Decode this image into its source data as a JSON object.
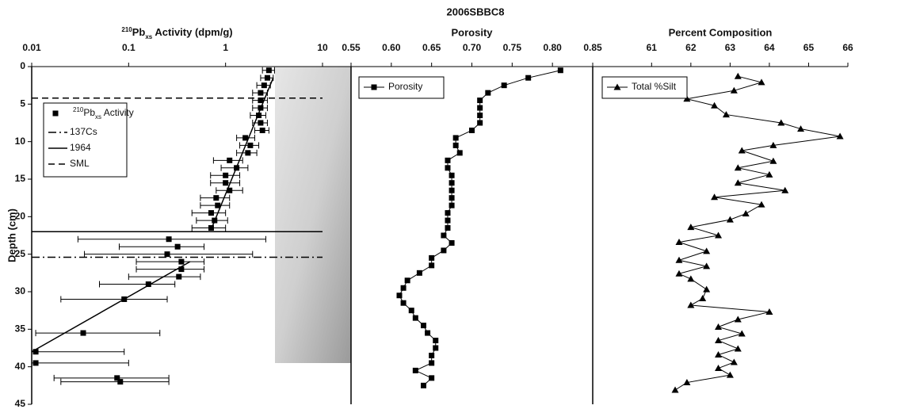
{
  "title": "2006SBBC8",
  "depth_axis": {
    "label": "Depth (cm)",
    "lim": [
      0,
      45
    ],
    "ticks": [
      0,
      5,
      10,
      15,
      20,
      25,
      30,
      35,
      40,
      45
    ]
  },
  "chart_data": [
    {
      "type": "scatter",
      "log_x": true,
      "xlabel": {
        "sup": "210",
        "base": "Pb",
        "sub": "xs",
        "rest": " Activity (dpm/g)"
      },
      "xlim": [
        0.01,
        10
      ],
      "xticks": [
        0.01,
        0.1,
        1,
        10
      ],
      "series": [
        {
          "name": {
            "sup": "210",
            "base": "Pb",
            "sub": "xs",
            "rest": " Activity"
          },
          "color": "#000000",
          "marker": "square",
          "line": false,
          "depth": [
            0.5,
            1.5,
            2.5,
            3.5,
            4.5,
            5.5,
            6.5,
            7.5,
            8.5,
            9.5,
            10.5,
            11.5,
            12.5,
            13.5,
            14.5,
            15.5,
            16.5,
            17.5,
            18.5,
            19.5,
            20.5,
            21.5,
            23,
            24,
            25,
            26,
            27,
            28,
            29,
            31,
            35.5,
            38,
            39.5,
            41.5,
            42
          ],
          "values": [
            2.8,
            2.7,
            2.5,
            2.3,
            2.3,
            2.3,
            2.2,
            2.3,
            2.4,
            1.6,
            1.8,
            1.7,
            1.1,
            1.3,
            1,
            1,
            1.1,
            0.8,
            0.83,
            0.71,
            0.77,
            0.71,
            0.26,
            0.32,
            0.25,
            0.35,
            0.35,
            0.33,
            0.16,
            0.09,
            0.034,
            0.011,
            0.011,
            0.076,
            0.082
          ],
          "error_low": [
            2.4,
            2.3,
            2.1,
            1.9,
            1.9,
            1.9,
            1.8,
            1.9,
            2.0,
            1.3,
            1.4,
            1.3,
            0.75,
            0.9,
            0.7,
            0.7,
            0.8,
            0.55,
            0.55,
            0.45,
            0.5,
            0.45,
            0.03,
            0.08,
            0.035,
            0.12,
            0.12,
            0.1,
            0.05,
            0.02,
            0.011,
            0.01,
            0.01,
            0.017,
            0.02
          ],
          "error_high": [
            3.2,
            3.1,
            2.9,
            2.7,
            2.7,
            2.7,
            2.6,
            2.7,
            2.8,
            2.0,
            2.2,
            2.1,
            1.5,
            1.7,
            1.4,
            1.4,
            1.5,
            1.1,
            1.1,
            1.0,
            1.05,
            1.0,
            2.6,
            0.6,
            1.9,
            0.6,
            0.6,
            0.55,
            0.3,
            0.25,
            0.21,
            0.09,
            0.1,
            0.26,
            0.26
          ]
        }
      ],
      "fits": [
        {
          "depth": [
            1.5,
            21.5
          ],
          "values": [
            3.1,
            0.72
          ]
        },
        {
          "depth": [
            26,
            38
          ],
          "values": [
            0.43,
            0.01
          ]
        }
      ],
      "reference_lines": [
        {
          "name": "137Cs",
          "depth": 25.4,
          "style": "dash-dot"
        },
        {
          "name": "1964",
          "depth": 22,
          "style": "solid"
        },
        {
          "name": "SML",
          "depth": 4.2,
          "style": "dashed"
        }
      ]
    },
    {
      "type": "line",
      "log_x": false,
      "xlabel": "Porosity",
      "xlim": [
        0.55,
        0.85
      ],
      "xticks": [
        0.55,
        {
          "value": 0.6,
          "label": "0.60"
        },
        0.65,
        {
          "value": 0.7,
          "label": "0.70"
        },
        0.75,
        {
          "value": 0.8,
          "label": "0.80"
        },
        0.85
      ],
      "series": [
        {
          "name": "Porosity",
          "color": "#000000",
          "marker": "square",
          "line": true,
          "depth": [
            0.5,
            1.5,
            2.5,
            3.5,
            4.5,
            5.5,
            6.5,
            7.5,
            8.5,
            9.5,
            10.5,
            11.5,
            12.5,
            13.5,
            14.5,
            15.5,
            16.5,
            17.5,
            18.5,
            19.5,
            20.5,
            21.5,
            22.5,
            23.5,
            24.5,
            25.5,
            26.5,
            27.5,
            28.5,
            29.5,
            30.5,
            31.5,
            32.5,
            33.5,
            34.5,
            35.5,
            36.5,
            37.5,
            38.5,
            39.5,
            40.5,
            41.5,
            42.5
          ],
          "values": [
            0.81,
            0.77,
            0.74,
            0.72,
            0.71,
            0.71,
            0.71,
            0.71,
            0.7,
            0.68,
            0.68,
            0.685,
            0.67,
            0.67,
            0.675,
            0.675,
            0.675,
            0.675,
            0.675,
            0.67,
            0.67,
            0.67,
            0.665,
            0.675,
            0.665,
            0.65,
            0.65,
            0.635,
            0.62,
            0.615,
            0.61,
            0.615,
            0.625,
            0.63,
            0.64,
            0.645,
            0.655,
            0.655,
            0.65,
            0.65,
            0.63,
            0.65,
            0.64
          ]
        }
      ]
    },
    {
      "type": "line",
      "log_x": false,
      "xlabel": "Percent Composition",
      "xlim": [
        59.5,
        66
      ],
      "xticks": [
        61,
        62,
        63,
        64,
        65,
        66
      ],
      "series": [
        {
          "name": "Total %Silt",
          "color": "#000000",
          "marker": "triangle",
          "line": true,
          "depth": [
            1.3,
            2.1,
            3.2,
            4.3,
            5.2,
            6.4,
            7.5,
            8.3,
            9.3,
            10.5,
            11.2,
            12.6,
            13.5,
            14.4,
            15.5,
            16.5,
            17.4,
            18.4,
            19.6,
            20.4,
            21.4,
            22.5,
            23.4,
            24.6,
            25.8,
            26.6,
            27.6,
            28.3,
            29.7,
            30.9,
            31.8,
            32.7,
            33.7,
            34.7,
            35.6,
            36.5,
            37.6,
            38.4,
            39.4,
            40.2,
            41.1,
            42.1,
            43.1
          ],
          "values": [
            63.2,
            63.8,
            63.1,
            61.9,
            62.6,
            62.9,
            64.3,
            64.8,
            65.8,
            64.1,
            63.3,
            64.1,
            63.2,
            64.0,
            63.2,
            64.4,
            62.6,
            63.8,
            63.4,
            63.0,
            62.0,
            62.7,
            61.7,
            62.4,
            61.7,
            62.4,
            61.7,
            62.0,
            62.4,
            62.3,
            62.0,
            64.0,
            63.2,
            62.7,
            63.3,
            62.7,
            63.2,
            62.7,
            63.1,
            62.7,
            63.0,
            61.9,
            61.6
          ]
        }
      ]
    }
  ]
}
